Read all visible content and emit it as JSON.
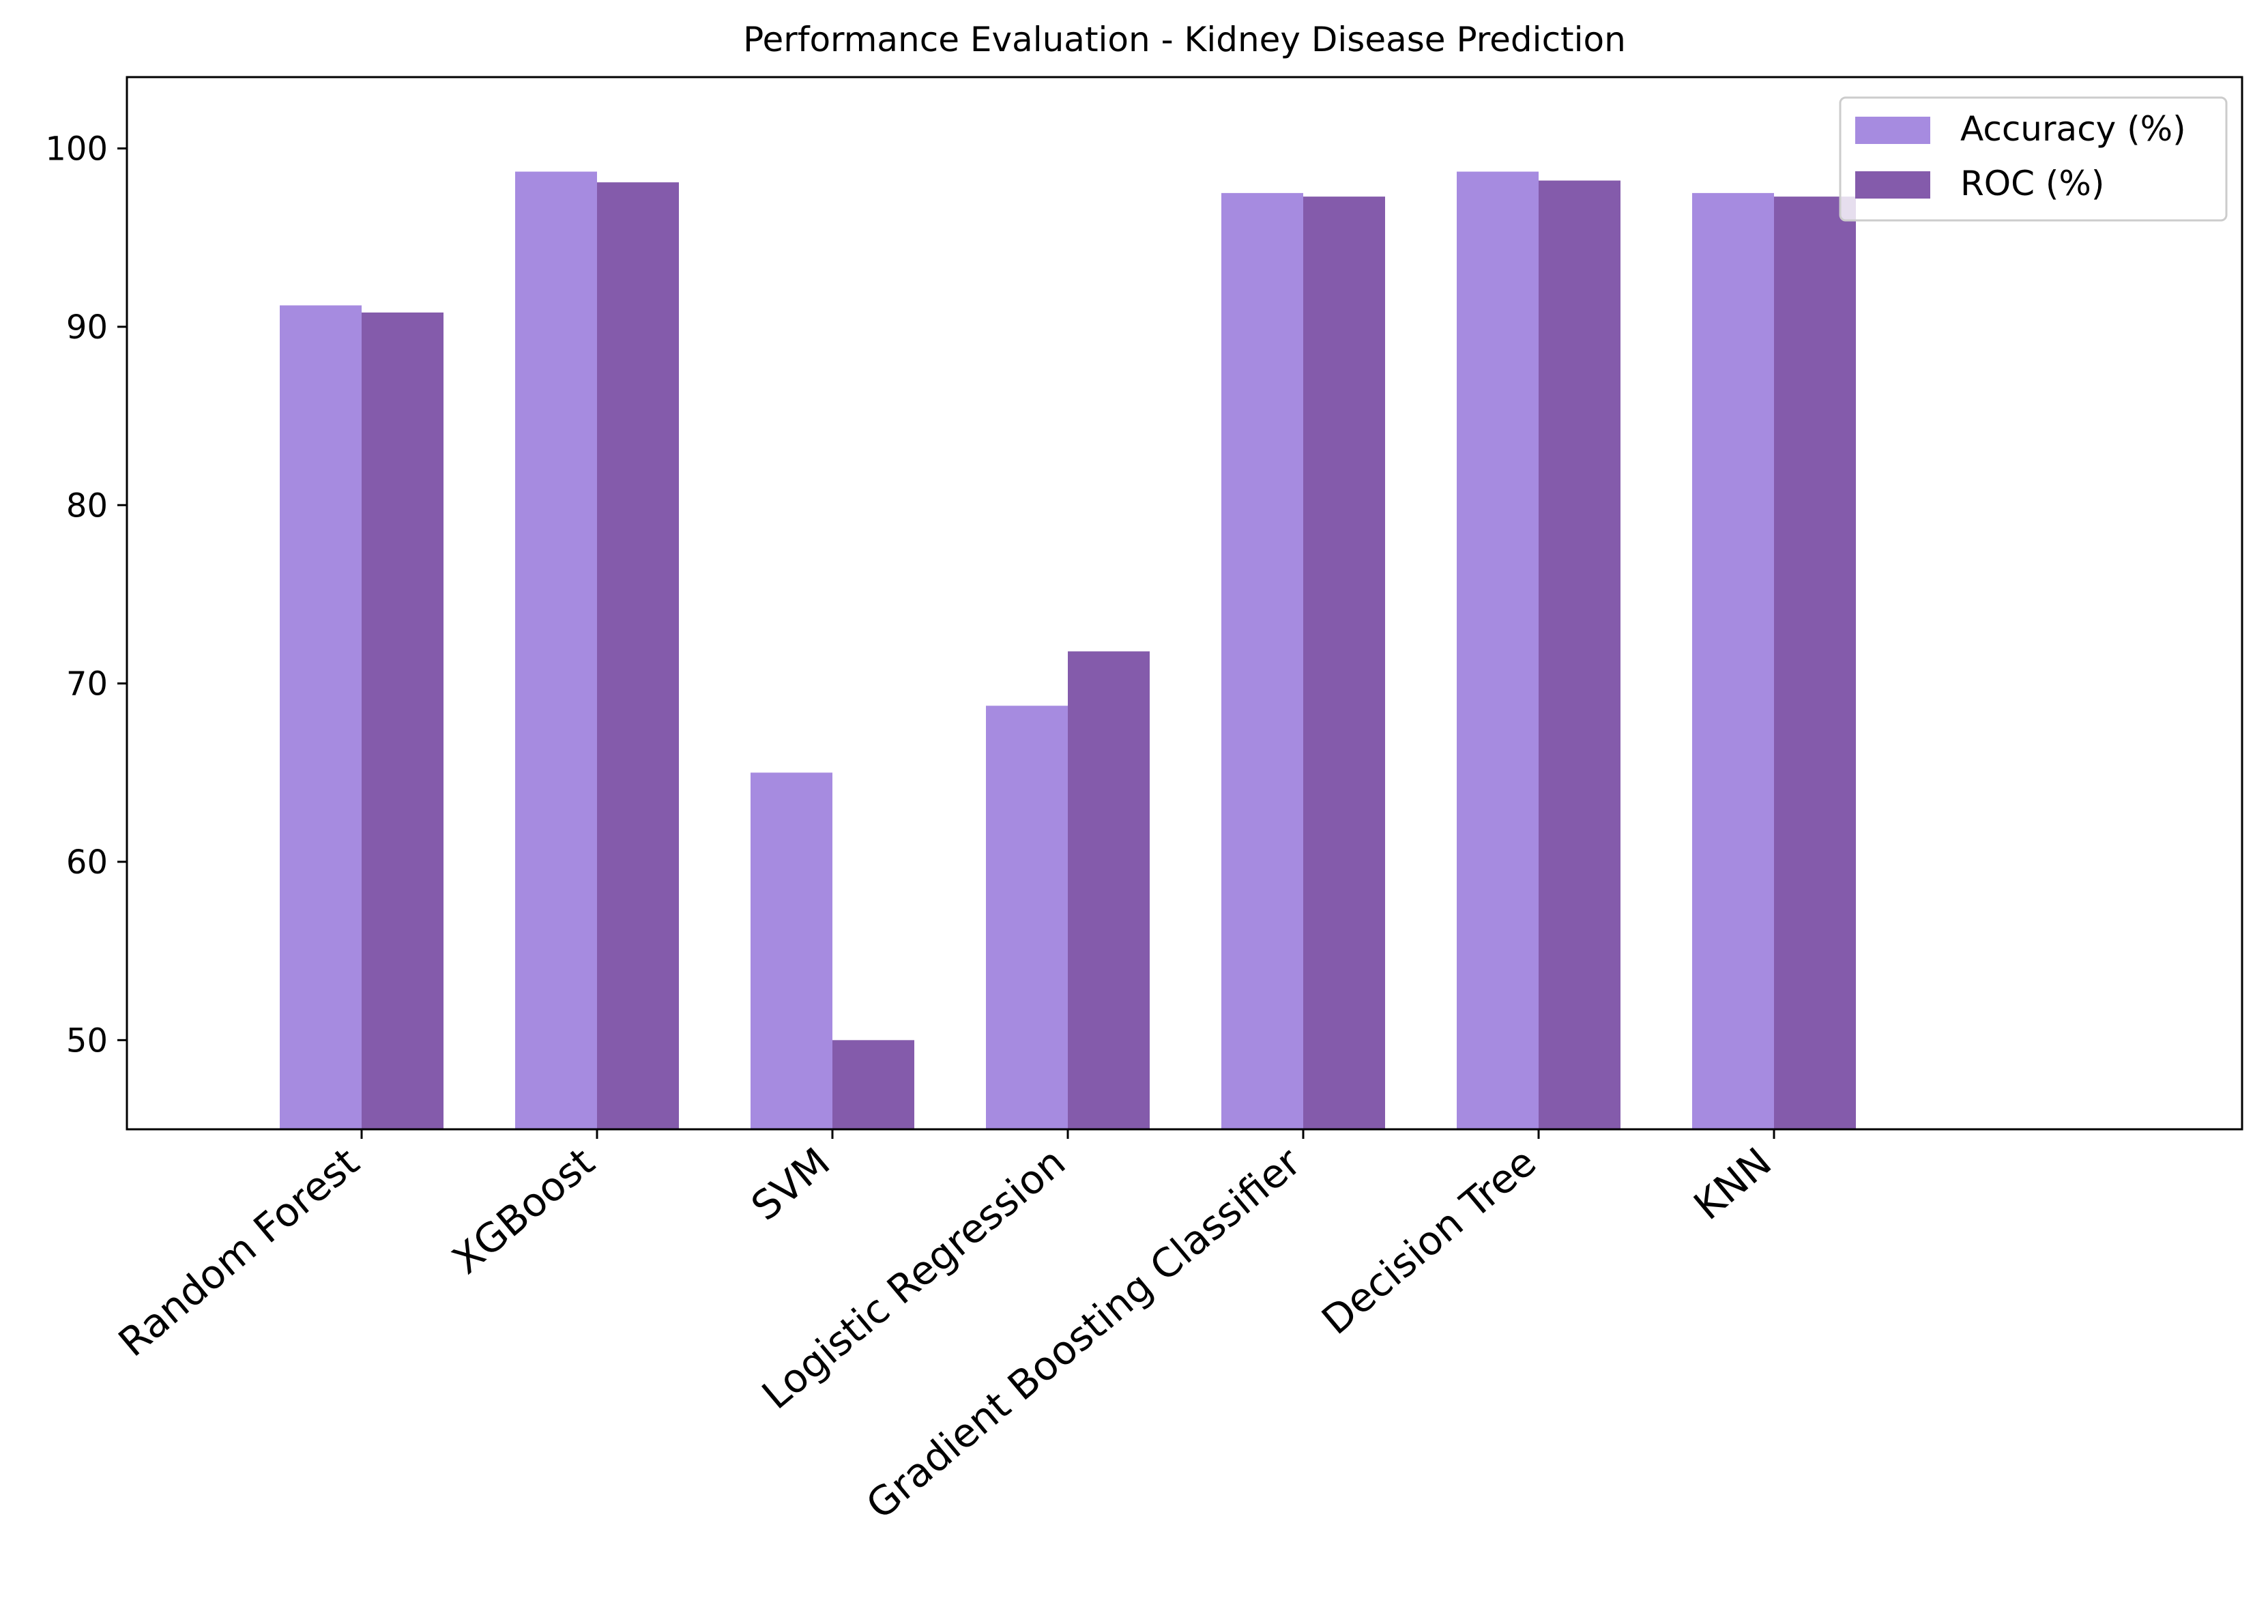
{
  "chart_data": {
    "type": "bar",
    "title": "Performance Evaluation - Kidney Disease Prediction",
    "xlabel": "",
    "ylabel": "",
    "categories": [
      "Random Forest",
      "XGBoost",
      "SVM",
      "Logistic Regression",
      "Gradient Boosting Classifier",
      "Decision Tree",
      "KNN"
    ],
    "series": [
      {
        "name": "Accuracy (%)",
        "color": "#a68be0",
        "values": [
          91.2,
          98.7,
          65.0,
          68.75,
          97.5,
          98.7,
          97.5
        ]
      },
      {
        "name": "ROC (%)",
        "color": "#845bab",
        "values": [
          90.8,
          98.1,
          50.0,
          71.8,
          97.3,
          98.2,
          97.3
        ]
      }
    ],
    "ylim": [
      45,
      104
    ],
    "yticks": [
      50,
      60,
      70,
      80,
      90,
      100
    ],
    "grid": false,
    "legend_position": "top-right"
  }
}
